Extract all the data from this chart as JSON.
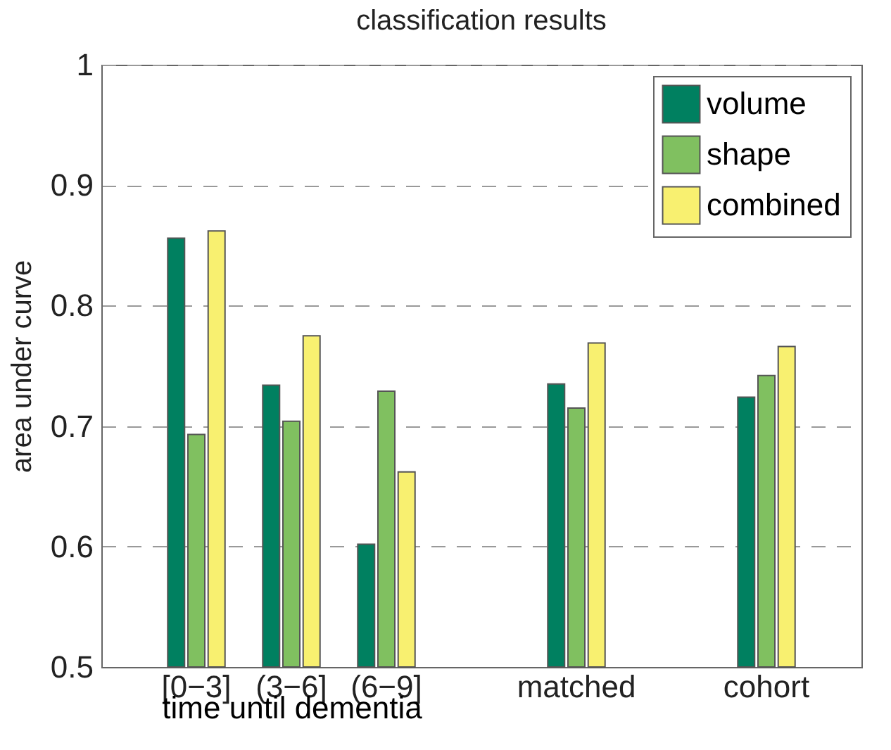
{
  "chart_data": {
    "type": "bar",
    "title": "classification results",
    "xlabel": "time until dementia",
    "ylabel": "area under curve",
    "categories": [
      "[0−3]",
      "(3−6]",
      "(6−9]",
      null,
      "matched",
      null,
      "cohort"
    ],
    "series": [
      {
        "name": "volume",
        "color": "#008060",
        "values": [
          0.856,
          0.734,
          0.602,
          null,
          0.735,
          null,
          0.724
        ]
      },
      {
        "name": "shape",
        "color": "#80c060",
        "values": [
          0.693,
          0.704,
          0.729,
          null,
          0.715,
          null,
          0.742
        ]
      },
      {
        "name": "combined",
        "color": "#f8f070",
        "values": [
          0.862,
          0.775,
          0.662,
          null,
          0.769,
          null,
          0.766
        ]
      }
    ],
    "ylim": [
      0.5,
      1
    ],
    "yticks": [
      0.5,
      0.6,
      0.7,
      0.8,
      0.9,
      1
    ],
    "grid": "y",
    "legend": "top right"
  }
}
